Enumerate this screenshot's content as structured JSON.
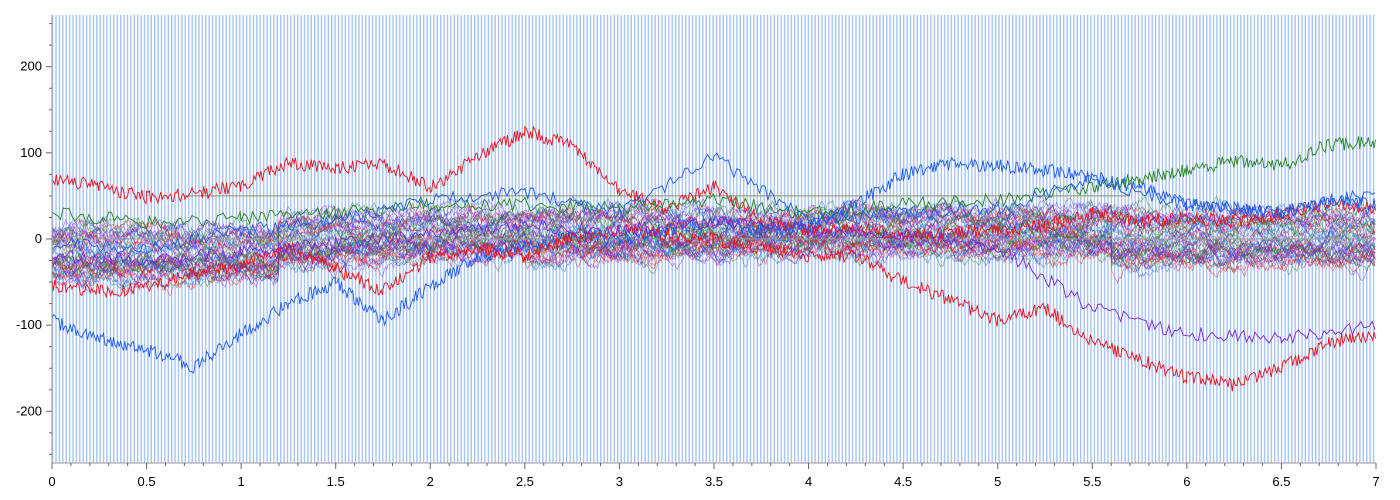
{
  "chart_data": {
    "type": "line",
    "title": "",
    "xlabel": "",
    "ylabel": "",
    "xlim": [
      0,
      7
    ],
    "ylim": [
      -260,
      260
    ],
    "x_ticks": [
      "0",
      "0.5",
      "1",
      "1.5",
      "2",
      "2.5",
      "3",
      "3.5",
      "4",
      "4.5",
      "5",
      "5.5",
      "6",
      "6.5",
      "7"
    ],
    "y_ticks": [
      "200",
      "100",
      "0",
      "-100",
      "-200"
    ],
    "x_tick_values": [
      0,
      0.5,
      1,
      1.5,
      2,
      2.5,
      3,
      3.5,
      4,
      4.5,
      5,
      5.5,
      6,
      6.5,
      7
    ],
    "y_tick_values": [
      200,
      100,
      0,
      -100,
      -200
    ],
    "grid": false,
    "legend": "none",
    "background_events": {
      "description_color": "#a9c4f2",
      "interval": 0.018,
      "start": 0.003
    },
    "reference_lines": [
      {
        "y": 50,
        "x_start": 0.7,
        "x_end": 5.7,
        "color": "#8f8f60"
      },
      {
        "y": 0,
        "x_start": 0,
        "x_end": 7,
        "color": "#9a9a9a"
      }
    ],
    "colors": {
      "background_events": "#a9c4f2",
      "red": "#e8111b",
      "blue": "#1e5be8",
      "green": "#23851d",
      "purple": "#7a25d6"
    },
    "series": [
      {
        "color": "#e8111b",
        "x": [
          0,
          0.25,
          0.5,
          0.75,
          1,
          1.25,
          1.5,
          1.75,
          2,
          2.25,
          2.5,
          2.75,
          3,
          3.25,
          3.5,
          3.75,
          4,
          4.25,
          4.5,
          4.75,
          5,
          5.25,
          5.5,
          5.75,
          6,
          6.25,
          6.5,
          6.75,
          7
        ],
        "y": [
          70,
          62,
          48,
          52,
          62,
          88,
          82,
          88,
          60,
          95,
          125,
          110,
          55,
          35,
          60,
          20,
          10,
          12,
          5,
          8,
          10,
          15,
          30,
          20,
          25,
          20,
          30,
          40,
          35
        ]
      },
      {
        "color": "#1e5be8",
        "x": [
          0,
          0.25,
          0.5,
          0.75,
          1,
          1.25,
          1.5,
          1.75,
          2,
          2.25,
          2.5,
          2.75,
          3,
          3.25,
          3.5,
          3.75,
          4,
          4.25,
          4.5,
          4.75,
          5,
          5.25,
          5.5,
          5.75,
          6,
          6.25,
          6.5,
          6.75,
          7
        ],
        "y": [
          -95,
          -115,
          -128,
          -148,
          -110,
          -75,
          -50,
          -95,
          -55,
          -20,
          -10,
          5,
          0,
          10,
          20,
          10,
          15,
          40,
          75,
          88,
          85,
          80,
          72,
          60,
          40,
          35,
          30,
          45,
          40
        ]
      },
      {
        "color": "#e8111b",
        "x": [
          0,
          0.25,
          0.5,
          0.75,
          1,
          1.25,
          1.5,
          1.75,
          2,
          2.25,
          2.5,
          2.75,
          3,
          3.25,
          3.5,
          3.75,
          4,
          4.25,
          4.5,
          4.75,
          5,
          5.25,
          5.5,
          5.75,
          6,
          6.25,
          6.5,
          6.75,
          7
        ],
        "y": [
          -55,
          -60,
          -58,
          -40,
          -30,
          -10,
          -35,
          -60,
          -20,
          -10,
          -20,
          0,
          10,
          5,
          0,
          -10,
          -20,
          -20,
          -50,
          -70,
          -95,
          -80,
          -120,
          -140,
          -160,
          -170,
          -150,
          -120,
          -110
        ]
      },
      {
        "color": "#7a25d6",
        "x": [
          0,
          0.5,
          1,
          1.5,
          2,
          2.5,
          3,
          3.5,
          4,
          4.5,
          5,
          5.5,
          6,
          6.5,
          7
        ],
        "y": [
          -20,
          -25,
          -15,
          -5,
          5,
          15,
          10,
          20,
          10,
          5,
          -10,
          -80,
          -110,
          -115,
          -100
        ]
      },
      {
        "color": "#23851d",
        "x": [
          0,
          0.5,
          1,
          1.5,
          2,
          2.5,
          3,
          3.5,
          4,
          4.5,
          5,
          5.5,
          5.75,
          6,
          6.25,
          6.5,
          6.75,
          7
        ],
        "y": [
          30,
          20,
          25,
          30,
          40,
          40,
          35,
          45,
          30,
          40,
          45,
          60,
          70,
          80,
          90,
          85,
          110,
          112
        ]
      },
      {
        "color": "#1e5be8",
        "x": [
          0,
          0.5,
          1,
          1.5,
          2,
          2.5,
          3,
          3.5,
          4,
          4.5,
          5,
          5.5,
          6,
          6.5,
          7
        ],
        "y": [
          -5,
          -10,
          10,
          20,
          45,
          55,
          30,
          95,
          20,
          30,
          35,
          70,
          40,
          30,
          55
        ]
      }
    ]
  }
}
